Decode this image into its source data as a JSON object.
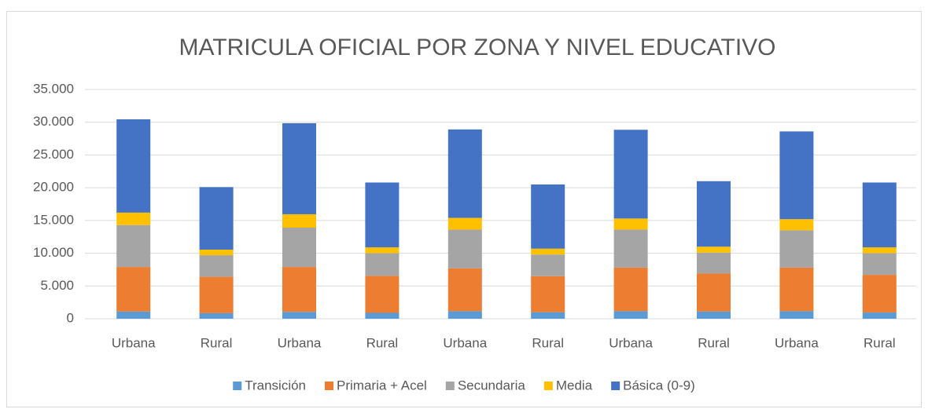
{
  "chart_data": {
    "type": "stacked_bar",
    "title": "MATRICULA OFICIAL POR ZONA Y NIVEL EDUCATIVO",
    "categories": [
      "Urbana",
      "Rural",
      "Urbana",
      "Rural",
      "Urbana",
      "Rural",
      "Urbana",
      "Rural",
      "Urbana",
      "Rural"
    ],
    "series": [
      {
        "name": "Transición",
        "color": "#5b9bd5",
        "values": [
          1100,
          850,
          1050,
          900,
          1150,
          1000,
          1150,
          1100,
          1150,
          950
        ]
      },
      {
        "name": "Primaria + Acel",
        "color": "#ed7d31",
        "values": [
          6800,
          5550,
          6850,
          5650,
          6550,
          5500,
          6650,
          5800,
          6650,
          5750
        ]
      },
      {
        "name": "Secundaria",
        "color": "#a5a5a5",
        "values": [
          6400,
          3300,
          6000,
          3450,
          5900,
          3300,
          5800,
          3200,
          5700,
          3300
        ]
      },
      {
        "name": "Media",
        "color": "#ffc000",
        "values": [
          1900,
          850,
          2050,
          900,
          1800,
          900,
          1700,
          900,
          1700,
          900
        ]
      },
      {
        "name": "Básica (0-9)",
        "color": "#4472c4",
        "values": [
          14250,
          9550,
          13900,
          9900,
          13500,
          9800,
          13550,
          10000,
          13400,
          9900
        ]
      }
    ],
    "ylim": [
      0,
      35000
    ],
    "yticks": [
      0,
      {
        "value": 5000,
        "label": "5.000"
      },
      {
        "value": 10000,
        "label": "10.000"
      },
      {
        "value": 15000,
        "label": "15.000"
      },
      {
        "value": 20000,
        "label": "20.000"
      },
      {
        "value": 25000,
        "label": "25.000"
      },
      {
        "value": 30000,
        "label": "30.000"
      },
      {
        "value": 35000,
        "label": "35.000"
      }
    ],
    "grid": true,
    "legend": "bottom"
  }
}
